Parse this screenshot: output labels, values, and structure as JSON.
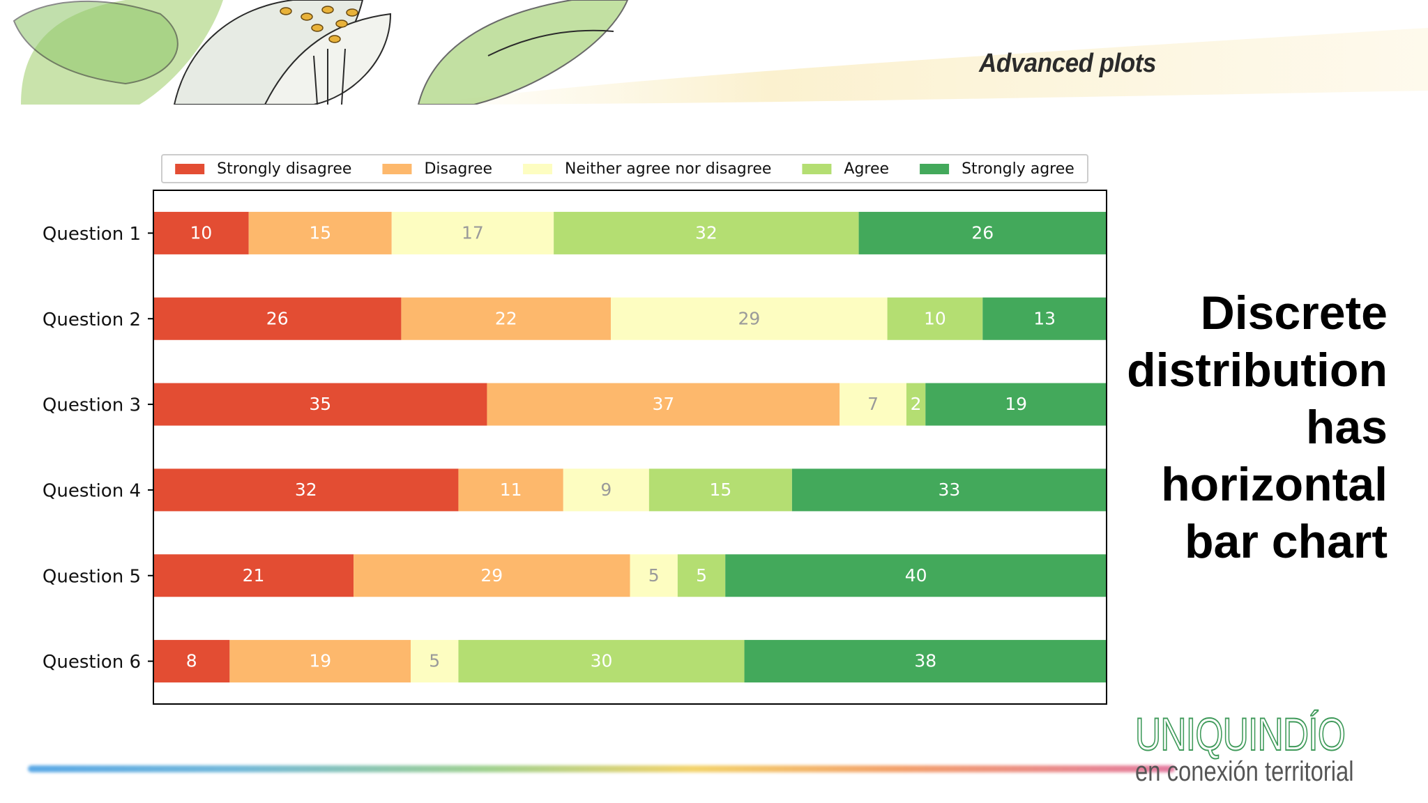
{
  "header": {
    "title": "Advanced plots"
  },
  "side_text": [
    "Discrete",
    "distribution",
    "has",
    "horizontal",
    "bar chart"
  ],
  "logo": {
    "name": "UNIQUINDÍO",
    "tagline": "en conexión territorial"
  },
  "chart_data": {
    "type": "bar",
    "orientation": "horizontal",
    "stacked": true,
    "categories": [
      "Question 1",
      "Question 2",
      "Question 3",
      "Question 4",
      "Question 5",
      "Question 6"
    ],
    "series": [
      {
        "name": "Strongly disagree",
        "color": "#e34d33",
        "label_color": "#ffffff",
        "values": [
          10,
          26,
          35,
          32,
          21,
          8
        ]
      },
      {
        "name": "Disagree",
        "color": "#fdb86c",
        "label_color": "#ffffff",
        "values": [
          15,
          22,
          37,
          11,
          29,
          19
        ]
      },
      {
        "name": "Neither agree nor disagree",
        "color": "#fdfdc1",
        "label_color": "#9a9a9a",
        "values": [
          17,
          29,
          7,
          9,
          5,
          5
        ]
      },
      {
        "name": "Agree",
        "color": "#b4de72",
        "label_color": "#ffffff",
        "values": [
          32,
          10,
          2,
          15,
          5,
          30
        ]
      },
      {
        "name": "Strongly agree",
        "color": "#43a95b",
        "label_color": "#ffffff",
        "values": [
          26,
          13,
          19,
          33,
          40,
          38
        ]
      }
    ],
    "xlim": [
      0,
      100
    ],
    "legend": "top"
  }
}
